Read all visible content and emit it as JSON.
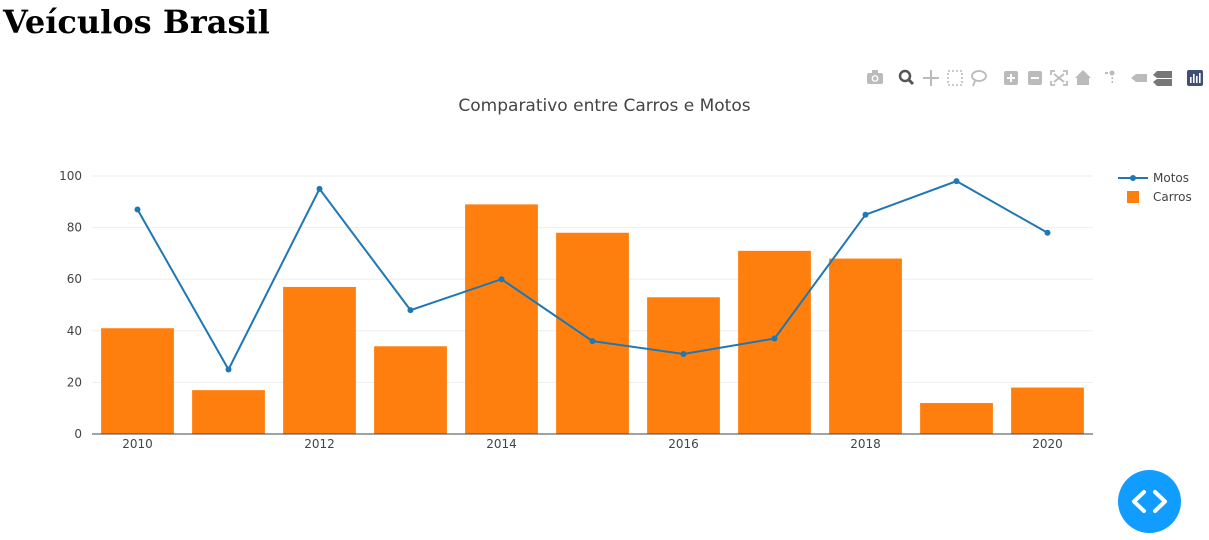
{
  "page": {
    "heading": "Veículos Brasil"
  },
  "toolbar": {
    "icons": [
      "camera-icon",
      "zoom-icon",
      "pan-icon",
      "box-select-icon",
      "lasso-select-icon",
      "zoom-in-icon",
      "zoom-out-icon",
      "autoscale-icon",
      "reset-axes-icon",
      "spike-lines-icon",
      "hover-closest-icon",
      "hover-compare-icon",
      "plotly-logo-icon"
    ]
  },
  "chart_data": {
    "type": "bar",
    "title": "Comparativo entre Carros e Motos",
    "xlabel": "",
    "ylabel": "",
    "x": [
      2010,
      2011,
      2012,
      2013,
      2014,
      2015,
      2016,
      2017,
      2018,
      2019,
      2020
    ],
    "x_ticks": [
      "2010",
      "2012",
      "2014",
      "2016",
      "2018",
      "2020"
    ],
    "y_ticks": [
      "0",
      "20",
      "40",
      "60",
      "80",
      "100"
    ],
    "ylim": [
      0,
      100
    ],
    "grid": true,
    "legend_position": "top-right",
    "series": [
      {
        "name": "Motos",
        "type": "line",
        "color": "#1f77b4",
        "values": [
          87,
          25,
          95,
          48,
          60,
          36,
          31,
          37,
          85,
          98,
          78
        ]
      },
      {
        "name": "Carros",
        "type": "bar",
        "color": "#ff7f0e",
        "values": [
          41,
          17,
          57,
          34,
          89,
          78,
          53,
          71,
          68,
          12,
          18
        ]
      }
    ]
  },
  "fab": {
    "icon": "code-icon"
  }
}
